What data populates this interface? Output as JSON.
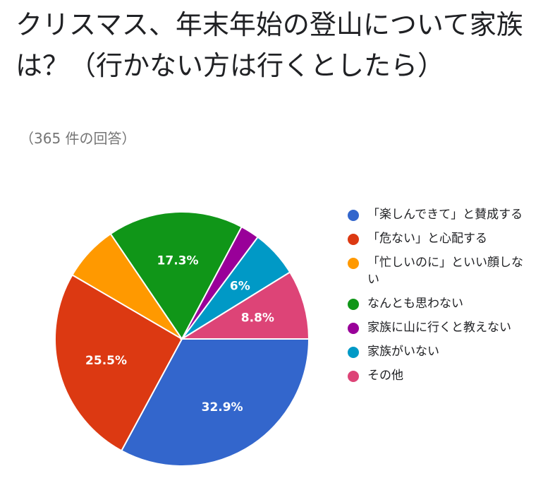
{
  "title": "クリスマス、年末年始の登山について家族は？（行かない方は行くとしたら）",
  "subtitle": "（365 件の回答）",
  "chart_data": {
    "type": "pie",
    "legend_position": "right",
    "start_angle_deg": 90,
    "direction": "clockwise",
    "slices": [
      {
        "name": "「楽しんできて」と賛成する",
        "value": 32.9,
        "label": "32.9%",
        "color": "#3366cc"
      },
      {
        "name": "「危ない」と心配する",
        "value": 25.5,
        "label": "25.5%",
        "color": "#dc3912"
      },
      {
        "name": "「忙しいのに」といい顔しない",
        "value": 7.1,
        "label": "",
        "color": "#ff9900"
      },
      {
        "name": "なんとも思わない",
        "value": 17.3,
        "label": "17.3%",
        "color": "#109618"
      },
      {
        "name": "家族に山に行くと教えない",
        "value": 2.4,
        "label": "",
        "color": "#990099"
      },
      {
        "name": "家族がいない",
        "value": 6.0,
        "label": "6%",
        "color": "#0099c6"
      },
      {
        "name": "その他",
        "value": 8.8,
        "label": "8.8%",
        "color": "#dd4477"
      }
    ]
  }
}
